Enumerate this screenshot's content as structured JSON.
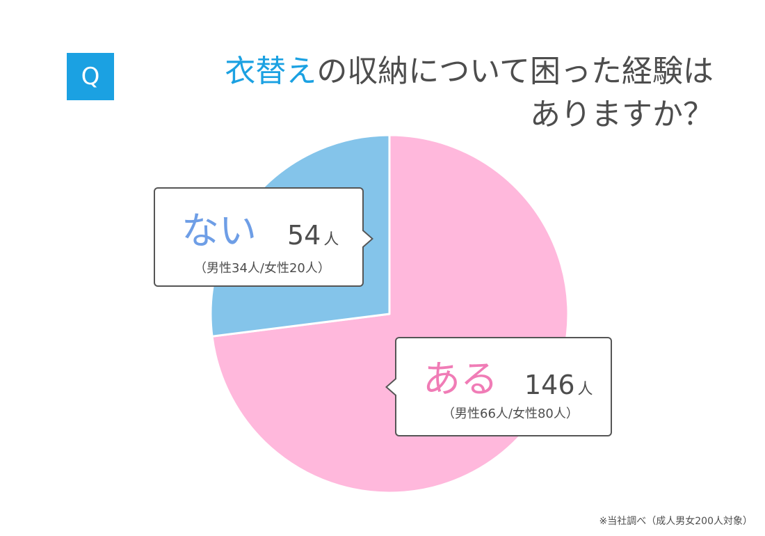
{
  "question": {
    "badge": "Q",
    "title_highlight": "衣替え",
    "title_rest": "の収納について困った経験は",
    "title_line2": "ありますか？"
  },
  "chart_data": {
    "type": "pie",
    "slices": [
      {
        "label": "ある",
        "value": 146,
        "unit": "人",
        "detail": "（男性66人/女性80人）",
        "color": "#ffb8dc"
      },
      {
        "label": "ない",
        "value": 54,
        "unit": "人",
        "detail": "（男性34人/女性20人）",
        "color": "#84c4ea"
      }
    ],
    "start_angle_deg": 0,
    "direction": "clockwise"
  },
  "footnote": "※当社調べ（成人男女200人対象）"
}
